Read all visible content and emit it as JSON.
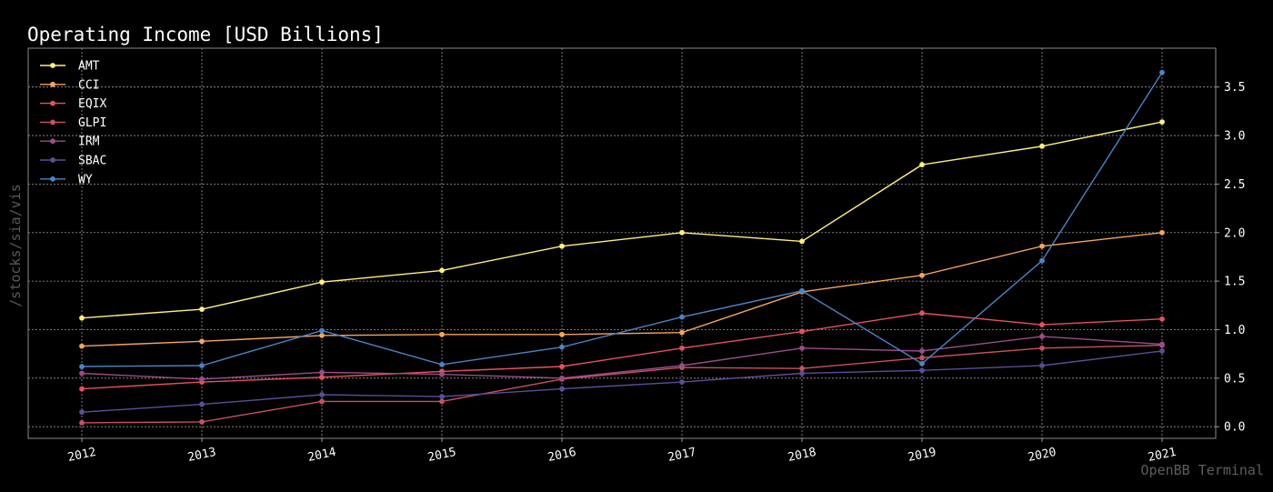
{
  "side_label": "/stocks/sia/vis",
  "watermark": "OpenBB Terminal",
  "chart_data": {
    "type": "line",
    "title": "Operating Income [USD Billions]",
    "xlabel": "",
    "ylabel": "",
    "x": [
      "2012",
      "2013",
      "2014",
      "2015",
      "2016",
      "2017",
      "2018",
      "2019",
      "2020",
      "2021"
    ],
    "ylim": [
      -0.12,
      3.9
    ],
    "yticks": [
      "0.0",
      "0.5",
      "1.0",
      "1.5",
      "2.0",
      "2.5",
      "3.0",
      "3.5"
    ],
    "ytick_values": [
      0,
      0.5,
      1.0,
      1.5,
      2.0,
      2.5,
      3.0,
      3.5
    ],
    "grid": true,
    "y_axis_side": "right",
    "legend_position": "top-left",
    "series": [
      {
        "name": "AMT",
        "color": "#fff07a",
        "values": [
          1.12,
          1.21,
          1.49,
          1.61,
          1.86,
          2.0,
          1.91,
          2.7,
          2.89,
          3.14
        ]
      },
      {
        "name": "CCI",
        "color": "#f5a55a",
        "values": [
          0.83,
          0.88,
          0.94,
          0.95,
          0.95,
          0.97,
          1.39,
          1.56,
          1.86,
          2.0
        ]
      },
      {
        "name": "EQIX",
        "color": "#e8505e",
        "values": [
          0.39,
          0.46,
          0.51,
          0.57,
          0.62,
          0.81,
          0.98,
          1.17,
          1.05,
          1.11
        ]
      },
      {
        "name": "GLPI",
        "color": "#c94f64",
        "values": [
          0.04,
          0.05,
          0.26,
          0.26,
          0.49,
          0.61,
          0.6,
          0.71,
          0.81,
          0.84
        ]
      },
      {
        "name": "IRM",
        "color": "#9a4d89",
        "values": [
          0.55,
          0.49,
          0.56,
          0.54,
          0.5,
          0.63,
          0.81,
          0.78,
          0.93,
          0.85
        ]
      },
      {
        "name": "SBAC",
        "color": "#5a4e99",
        "values": [
          0.15,
          0.23,
          0.33,
          0.31,
          0.39,
          0.46,
          0.55,
          0.58,
          0.63,
          0.78
        ]
      },
      {
        "name": "WY",
        "color": "#4a84c5",
        "values": [
          0.62,
          0.63,
          0.99,
          0.64,
          0.82,
          1.13,
          1.4,
          0.65,
          1.71,
          3.65
        ]
      }
    ]
  }
}
